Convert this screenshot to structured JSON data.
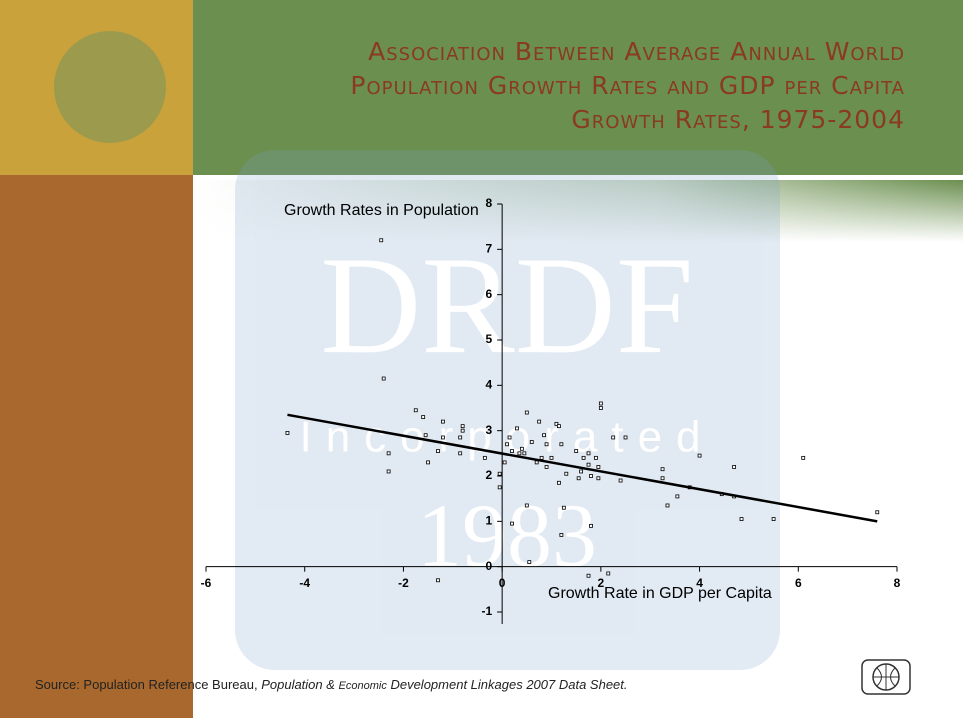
{
  "title_lines": [
    "Association Between Average Annual World",
    "Population Growth Rates and GDP per Capita",
    "Growth Rates, 1975-2004"
  ],
  "watermark": {
    "name": "DRDF",
    "sub": "Incorporated",
    "year": "1983"
  },
  "source": {
    "prefix": "Source: Population Reference Bureau, ",
    "title_parts": [
      "Population & ",
      "Economic",
      " Development Linkages 2007 Data Sheet."
    ]
  },
  "chart_data": {
    "type": "scatter",
    "y_label": "Growth Rates in Population",
    "x_label": "Growth Rate in GDP per Capita",
    "color": "#000000",
    "xlim": [
      -6,
      8
    ],
    "xticks": [
      -6,
      -4,
      -2,
      0,
      2,
      4,
      6,
      8
    ],
    "ylim": [
      -1,
      8
    ],
    "yticks": [
      -1,
      0,
      1,
      2,
      3,
      4,
      5,
      6,
      7,
      8
    ],
    "x": [
      -2.45,
      -2.4,
      -4.35,
      -2.3,
      -2.3,
      -1.75,
      -1.6,
      -1.55,
      -1.5,
      -1.3,
      -1.2,
      -1.2,
      -0.85,
      -0.85,
      -0.8,
      -0.8,
      -1.3,
      -0.35,
      -0.05,
      -0.05,
      0.05,
      0.1,
      0.15,
      0.2,
      0.2,
      0.3,
      0.35,
      0.4,
      0.45,
      0.5,
      0.5,
      0.55,
      0.6,
      0.7,
      0.75,
      0.8,
      0.85,
      0.9,
      0.9,
      1.0,
      1.1,
      1.15,
      1.15,
      1.2,
      1.2,
      1.25,
      1.3,
      1.5,
      1.55,
      1.6,
      1.65,
      1.75,
      1.75,
      1.8,
      1.8,
      1.9,
      1.95,
      1.95,
      2.0,
      2.0,
      2.25,
      2.4,
      2.5,
      1.75,
      2.15,
      3.25,
      3.25,
      3.35,
      3.55,
      3.8,
      4.0,
      4.45,
      4.7,
      4.7,
      4.85,
      5.5,
      6.1,
      7.6
    ],
    "values": [
      7.2,
      4.15,
      2.95,
      2.1,
      2.5,
      3.45,
      3.3,
      2.9,
      2.3,
      2.55,
      3.2,
      2.85,
      2.85,
      2.5,
      3.0,
      3.1,
      -0.3,
      2.4,
      2.05,
      1.75,
      2.3,
      2.7,
      2.85,
      2.55,
      0.95,
      3.05,
      2.5,
      2.6,
      2.5,
      1.35,
      3.4,
      0.1,
      2.75,
      2.3,
      3.2,
      2.4,
      2.9,
      2.2,
      2.7,
      2.4,
      3.15,
      3.1,
      1.85,
      2.7,
      0.7,
      1.3,
      2.05,
      2.55,
      1.95,
      2.1,
      2.4,
      2.5,
      2.25,
      2.0,
      0.9,
      2.4,
      2.2,
      1.95,
      3.6,
      3.5,
      2.85,
      1.9,
      2.85,
      -0.2,
      -0.15,
      2.15,
      1.95,
      1.35,
      1.55,
      1.75,
      2.45,
      1.6,
      2.2,
      1.55,
      1.05,
      1.05,
      2.4,
      1.2
    ],
    "trendline": {
      "x": [
        -4.35,
        7.6
      ],
      "values": [
        3.35,
        1.0
      ]
    }
  }
}
